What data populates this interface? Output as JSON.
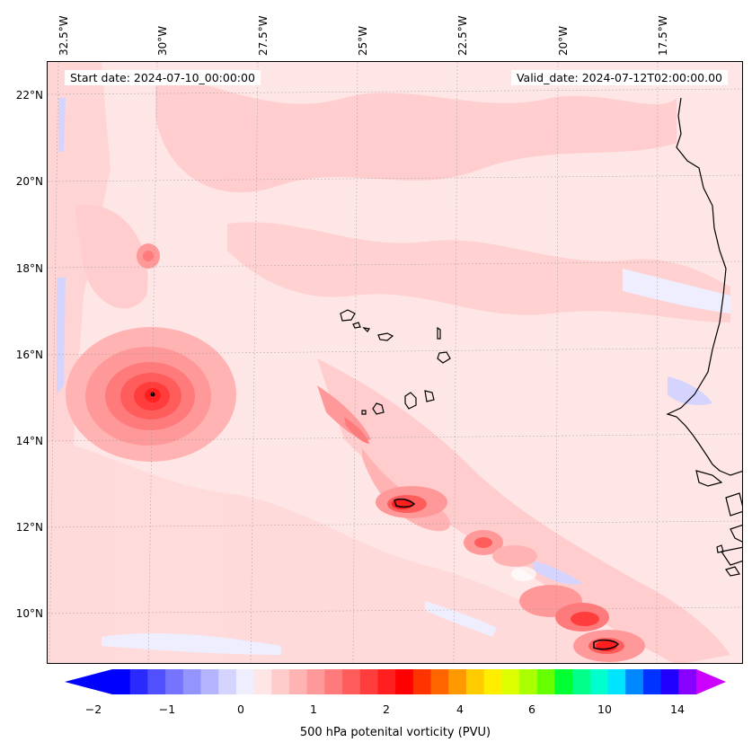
{
  "info": {
    "start": "Start date: 2024-07-10_00:00:00",
    "valid": "Valid_date: 2024-07-12T02:00:00.00"
  },
  "lon_labels": [
    "32.5°W",
    "30°W",
    "27.5°W",
    "25°W",
    "22.5°W",
    "20°W",
    "17.5°W"
  ],
  "lat_labels": [
    "22°N",
    "20°N",
    "18°N",
    "16°N",
    "14°N",
    "12°N",
    "10°N"
  ],
  "colorbar": {
    "label": "500 hPa potenital vorticity (PVU)",
    "ticks": [
      "−2",
      "−1",
      "0",
      "1",
      "2",
      "4",
      "6",
      "10",
      "14"
    ],
    "colors": [
      "#0000ff",
      "#2a2aff",
      "#5050ff",
      "#7474ff",
      "#9494ff",
      "#b4b4ff",
      "#d4d4ff",
      "#eeeeff",
      "#ffe6e6",
      "#ffcccc",
      "#ffb3b3",
      "#ff9999",
      "#ff7a7a",
      "#ff5c5c",
      "#ff3d3d",
      "#ff1f1f",
      "#ff0000",
      "#ff3300",
      "#ff6600",
      "#ff9900",
      "#ffcc00",
      "#ffee00",
      "#ddff00",
      "#aaff00",
      "#66ff00",
      "#00ff33",
      "#00ff88",
      "#00ffcc",
      "#00e5ff",
      "#0088ff",
      "#0033ff",
      "#2200ff",
      "#8800ff"
    ],
    "min_color": "#0000ff",
    "max_color": "#cc00ff"
  }
}
